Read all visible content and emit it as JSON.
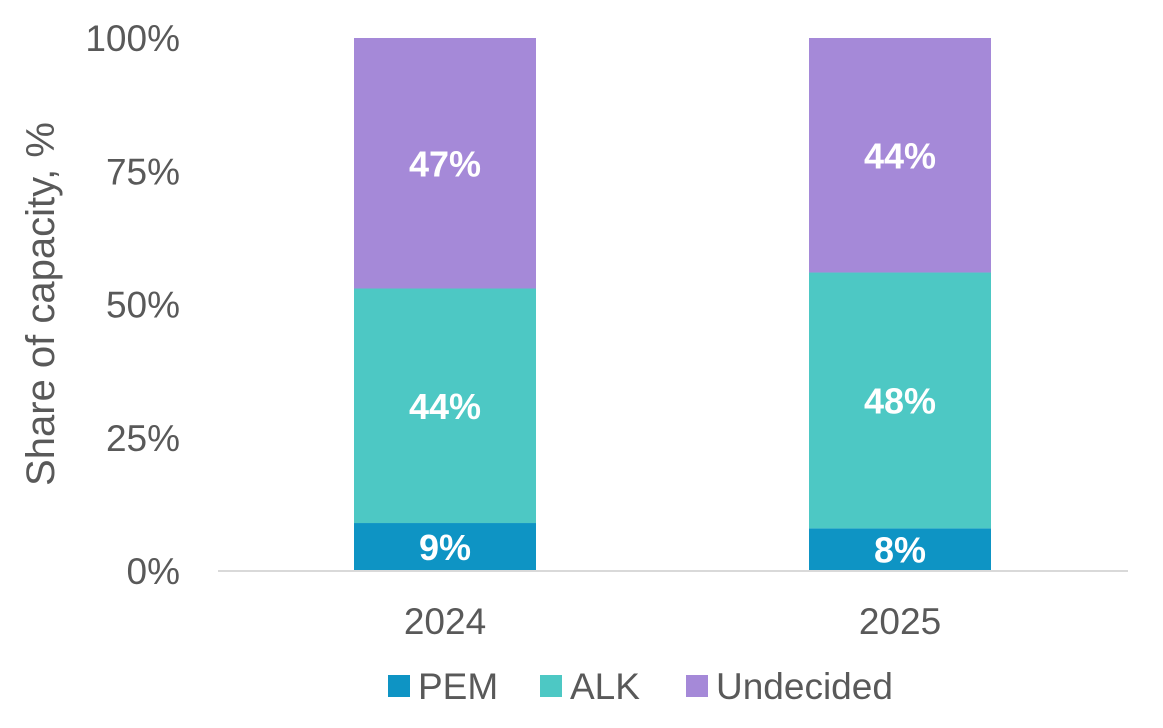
{
  "chart_data": {
    "type": "bar",
    "stacked": true,
    "categories": [
      "2024",
      "2025"
    ],
    "series": [
      {
        "name": "PEM",
        "values": [
          9,
          8
        ],
        "labels": [
          "9%",
          "8%"
        ],
        "color": "#0E94C4"
      },
      {
        "name": "ALK",
        "values": [
          44,
          48
        ],
        "labels": [
          "44%",
          "48%"
        ],
        "color": "#4DC8C4"
      },
      {
        "name": "Undecided",
        "values": [
          47,
          44
        ],
        "labels": [
          "47%",
          "44%"
        ],
        "color": "#A589D8"
      }
    ],
    "ylabel": "Share of capacity, %",
    "ylim": [
      0,
      100
    ],
    "yticks": [
      "0%",
      "25%",
      "50%",
      "75%",
      "100%"
    ],
    "legend_position": "bottom",
    "grid": false
  }
}
